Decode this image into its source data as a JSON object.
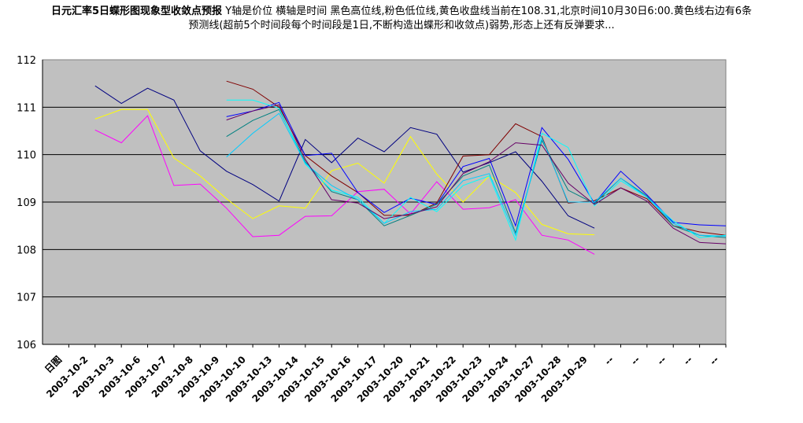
{
  "title": {
    "bold": "日元汇率5日蝶形图现象型收敛点预报",
    "rest": " Y轴是价位 横轴是时间 黑色高位线,粉色低位线,黄色收盘线当前在108.31,北京时间10月30日6:00.黄色线右边有6条预测线(超前5个时间段每个时间段是1日,不断构造出蝶形和收敛点)弱势,形态上还有反弹要求..."
  },
  "chart_data": {
    "type": "line",
    "categories": [
      "日图",
      "2003-10-2",
      "2003-10-3",
      "2003-10-6",
      "2003-10-7",
      "2003-10-8",
      "2003-10-9",
      "2003-10-10",
      "2003-10-13",
      "2003-10-14",
      "2003-10-15",
      "2003-10-16",
      "2003-10-17",
      "2003-10-20",
      "2003-10-21",
      "2003-10-22",
      "2003-10-23",
      "2003-10-24",
      "2003-10-27",
      "2003-10-28",
      "2003-10-29",
      "--",
      "--",
      "--",
      "--",
      "--"
    ],
    "ylim": [
      106,
      112
    ],
    "yticks": [
      106,
      107,
      108,
      109,
      110,
      111,
      112
    ],
    "plot_background": "#c0c0c0",
    "grid": true,
    "series": [
      {
        "color": "#000080",
        "values": [
          null,
          111.45,
          111.08,
          111.4,
          111.15,
          110.08,
          109.65,
          109.37,
          109.02,
          110.32,
          109.83,
          110.35,
          110.06,
          110.57,
          110.43,
          109.63,
          109.83,
          110.06,
          109.44,
          108.71,
          108.45,
          null,
          null,
          null,
          null,
          null
        ]
      },
      {
        "color": "#ff00ff",
        "values": [
          null,
          110.52,
          110.25,
          110.82,
          109.35,
          109.38,
          108.87,
          108.27,
          108.3,
          108.7,
          108.71,
          109.22,
          109.27,
          108.75,
          109.43,
          108.85,
          108.88,
          109.05,
          108.3,
          108.2,
          107.9,
          null,
          null,
          null,
          null,
          null
        ]
      },
      {
        "color": "#ffff00",
        "values": [
          null,
          110.75,
          110.95,
          110.95,
          109.93,
          109.55,
          109.07,
          108.65,
          108.92,
          108.87,
          109.66,
          109.82,
          109.4,
          110.38,
          109.59,
          109.0,
          109.55,
          109.2,
          108.53,
          108.33,
          108.31,
          null,
          null,
          null,
          null,
          null
        ]
      },
      {
        "color": "#800000",
        "values": [
          null,
          null,
          null,
          null,
          null,
          null,
          111.55,
          111.38,
          111.0,
          109.98,
          109.55,
          109.2,
          108.72,
          108.72,
          108.98,
          109.97,
          110.0,
          110.65,
          110.38,
          108.98,
          109.03,
          109.3,
          109.07,
          108.5,
          108.37,
          108.3
        ]
      },
      {
        "color": "#0000ff",
        "values": [
          null,
          null,
          null,
          null,
          null,
          null,
          110.8,
          110.92,
          111.1,
          109.98,
          110.03,
          109.2,
          108.78,
          109.08,
          108.95,
          109.75,
          109.92,
          108.5,
          110.57,
          109.9,
          108.97,
          109.65,
          109.15,
          108.57,
          108.52,
          108.5
        ]
      },
      {
        "color": "#008080",
        "values": [
          null,
          null,
          null,
          null,
          null,
          null,
          110.38,
          110.72,
          110.95,
          109.85,
          109.22,
          109.05,
          108.5,
          108.72,
          108.95,
          109.55,
          109.78,
          108.35,
          110.3,
          109.25,
          108.97,
          109.5,
          109.13,
          108.5,
          108.3,
          108.25
        ]
      },
      {
        "color": "#00ffff",
        "values": [
          null,
          null,
          null,
          null,
          null,
          null,
          111.15,
          111.15,
          110.98,
          109.8,
          109.25,
          109.1,
          108.55,
          109.1,
          108.8,
          109.35,
          109.55,
          108.2,
          110.45,
          110.15,
          108.92,
          109.45,
          109.1,
          108.6,
          108.25,
          108.3
        ]
      },
      {
        "color": "#00ccff",
        "values": [
          null,
          null,
          null,
          null,
          null,
          null,
          109.95,
          110.45,
          110.87,
          109.82,
          109.35,
          109.05,
          108.55,
          108.8,
          108.85,
          109.45,
          109.6,
          108.3,
          110.35,
          109.0,
          109.0,
          109.5,
          109.1,
          108.55,
          108.3,
          108.28
        ]
      },
      {
        "color": "#660066",
        "values": [
          null,
          null,
          null,
          null,
          null,
          null,
          110.73,
          110.92,
          111.05,
          109.9,
          109.05,
          108.98,
          108.65,
          108.75,
          108.9,
          109.6,
          109.85,
          110.25,
          110.2,
          109.4,
          108.95,
          109.3,
          109.02,
          108.45,
          108.15,
          108.12
        ]
      }
    ]
  }
}
